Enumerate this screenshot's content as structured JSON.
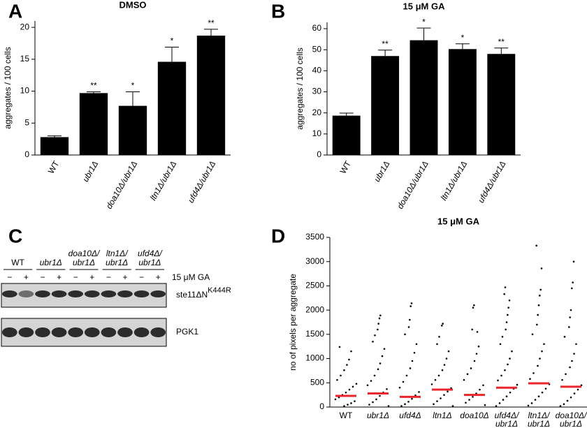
{
  "chart_data": [
    {
      "panel": "A",
      "type": "bar",
      "title": "DMSO",
      "y_label": "aggregates / 100 cells",
      "categories": [
        "WT",
        "ubr1Δ",
        "doa10Δ/ubr1Δ",
        "ltn1Δ/ubr1Δ",
        "ufd4Δ/ubr1Δ"
      ],
      "values": [
        2.8,
        9.7,
        7.7,
        14.6,
        18.7
      ],
      "errors": [
        0.2,
        0.2,
        2.2,
        2.3,
        1.0
      ],
      "significance": [
        null,
        "**",
        "*",
        "*",
        "**"
      ],
      "color": "#000000",
      "ylim": [
        0,
        21
      ],
      "yticks": [
        0,
        5,
        10,
        15,
        20
      ]
    },
    {
      "panel": "B",
      "type": "bar",
      "title": "15 μM GA",
      "y_label": "aggregates / 100 cells",
      "categories": [
        "WT",
        "ubr1Δ",
        "doa10Δ/ubr1Δ",
        "ltn1Δ/ubr1Δ",
        "ufd4Δ/ubr1Δ"
      ],
      "values": [
        18.7,
        47,
        54.5,
        50.3,
        48
      ],
      "errors": [
        1.2,
        2.8,
        5.8,
        2.5,
        2.8
      ],
      "significance": [
        null,
        "**",
        "*",
        "*",
        "**"
      ],
      "color": "#000000",
      "ylim": [
        0,
        63
      ],
      "yticks": [
        0,
        10,
        20,
        30,
        40,
        50,
        60
      ]
    },
    {
      "panel": "D",
      "type": "strip",
      "title": "15 μM GA",
      "y_label": "no of pixels per aggregate",
      "categories": [
        [
          "WT"
        ],
        [
          "ubr1Δ"
        ],
        [
          "ufd4Δ"
        ],
        [
          "ltn1Δ"
        ],
        [
          "doa10Δ"
        ],
        [
          "ufd4Δ/",
          "ubr1Δ"
        ],
        [
          "ltn1Δ/",
          "ubr1Δ"
        ],
        [
          "doa10Δ/",
          "ubr1Δ"
        ]
      ],
      "points": [
        [
          1240,
          1150,
          980,
          870,
          760,
          650,
          560,
          480,
          420,
          360,
          300,
          250,
          200,
          160,
          120,
          80,
          50,
          20
        ],
        [
          1890,
          1830,
          1720,
          1600,
          1480,
          1350,
          1200,
          1050,
          900,
          780,
          650,
          540,
          450,
          370,
          300,
          230,
          160,
          100,
          50,
          20
        ],
        [
          2140,
          2080,
          1800,
          1650,
          1500,
          1300,
          1120,
          950,
          800,
          650,
          520,
          400,
          310,
          240,
          170,
          110,
          60,
          20
        ],
        [
          1720,
          1680,
          1450,
          1300,
          1150,
          1000,
          870,
          760,
          650,
          560,
          470,
          390,
          320,
          250,
          180,
          120,
          60,
          20
        ],
        [
          2100,
          2050,
          1600,
          1550,
          1250,
          1100,
          950,
          800,
          680,
          560,
          450,
          360,
          280,
          210,
          150,
          90,
          40
        ],
        [
          2470,
          2330,
          2200,
          2050,
          1900,
          1750,
          1600,
          1450,
          1300,
          1150,
          1000,
          880,
          760,
          650,
          550,
          460,
          380,
          300,
          220,
          150,
          80,
          20
        ],
        [
          3330,
          2860,
          2420,
          2300,
          2100,
          1900,
          1700,
          1500,
          1300,
          1150,
          1000,
          850,
          700,
          580,
          470,
          380,
          300,
          220,
          150,
          80,
          30
        ],
        [
          3000,
          2570,
          2450,
          2000,
          1850,
          1650,
          1450,
          1300,
          1100,
          950,
          820,
          680,
          560,
          450,
          360,
          280,
          200,
          130,
          60,
          20
        ]
      ],
      "medians": [
        230,
        280,
        210,
        360,
        250,
        400,
        490,
        420
      ],
      "color": "#000000",
      "median_color": "#e8262b",
      "ylim": [
        0,
        3500
      ],
      "yticks": [
        0,
        500,
        1000,
        1500,
        2000,
        2500,
        3000,
        3500
      ]
    }
  ],
  "blot": {
    "panel": "C",
    "groups": [
      [
        "WT"
      ],
      [
        "ubr1Δ"
      ],
      [
        "doa10Δ/",
        "ubr1Δ"
      ],
      [
        "ltn1Δ/",
        "ubr1Δ"
      ],
      [
        "ufd4Δ/",
        "ubr1Δ"
      ]
    ],
    "lanes": [
      "−",
      "+",
      "−",
      "+",
      "−",
      "+",
      "−",
      "+",
      "−",
      "+"
    ],
    "treatment": "15 μM GA",
    "bands": [
      {
        "name": "ste11ΔN",
        "sup": "K444R"
      },
      {
        "name": "PGK1"
      }
    ]
  }
}
